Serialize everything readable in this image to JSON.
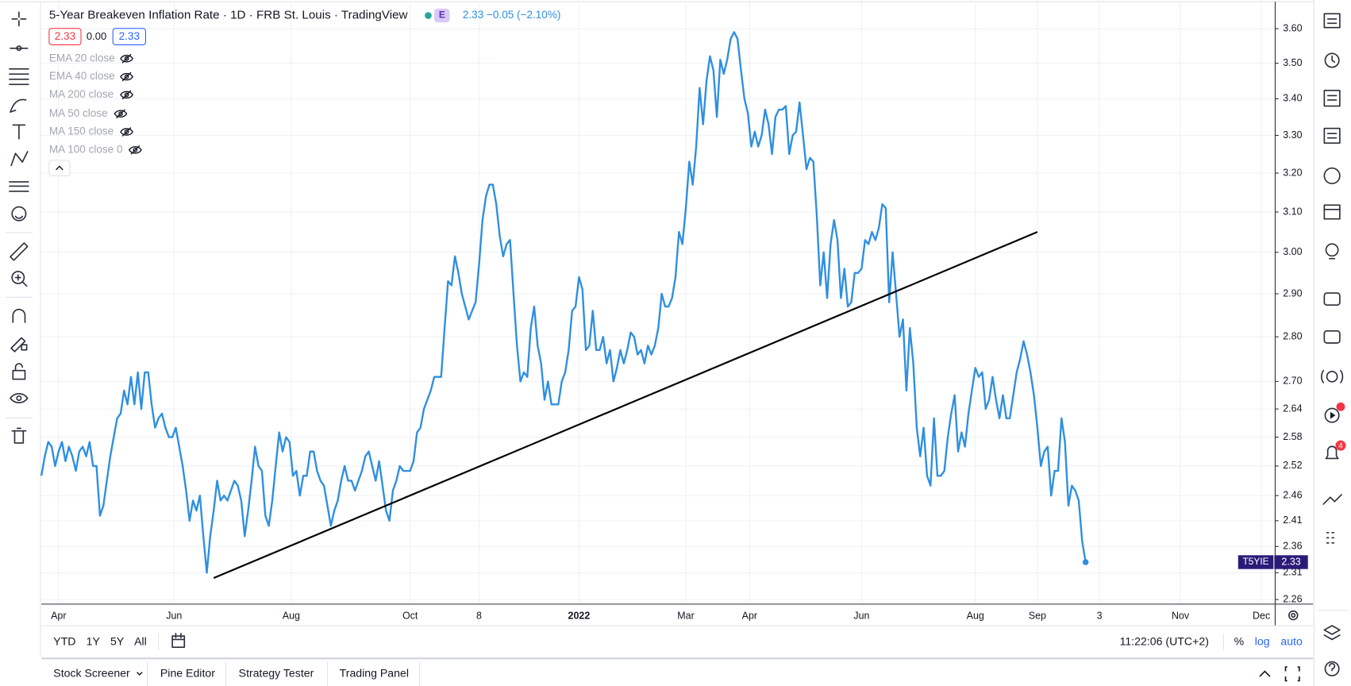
{
  "header": {
    "title": "5-Year Breakeven Inflation Rate · 1D · FRB St. Louis · TradingView",
    "badge": "E",
    "change": "2.33 −0.05 (−2.10%)",
    "ohlc": [
      "2.33",
      "0.00",
      "2.33"
    ]
  },
  "indicators": [
    "EMA 20 close",
    "EMA 40 close",
    "MA 200 close",
    "MA 50 close",
    "MA 150 close",
    "MA 100 close 0"
  ],
  "ranges": [
    "YTD",
    "1Y",
    "5Y",
    "All"
  ],
  "clock": "11:22:06 (UTC+2)",
  "scale_buttons": [
    "%",
    "log",
    "auto"
  ],
  "tabs": [
    "Stock Screener",
    "Pine Editor",
    "Strategy Tester",
    "Trading Panel"
  ],
  "notifications": "4",
  "chart_data": {
    "type": "line",
    "log_scale": true,
    "grid": true,
    "categories": [
      null,
      null,
      null,
      null,
      null,
      null,
      null,
      null,
      null,
      null,
      null,
      null,
      null,
      null,
      null,
      null,
      null,
      null,
      null,
      null,
      null,
      null,
      null,
      null,
      null,
      null,
      null,
      null,
      null,
      null,
      null,
      null,
      null,
      null,
      null,
      null,
      null,
      null,
      null,
      null,
      null,
      null,
      null,
      null,
      null,
      null,
      null,
      null,
      null,
      null,
      null,
      null,
      null,
      null,
      null,
      null,
      null,
      null,
      null,
      null,
      null,
      null,
      null,
      null,
      null,
      null,
      null,
      null,
      null,
      null,
      null,
      null,
      null,
      null,
      null,
      null,
      null,
      null,
      null,
      null,
      null,
      null,
      null,
      null,
      null,
      null,
      null,
      null,
      null,
      null,
      null,
      null,
      null,
      null,
      null,
      null,
      null,
      null,
      null,
      null,
      null,
      null,
      null,
      null,
      null,
      null,
      null,
      null,
      null,
      null,
      null,
      null,
      null,
      null,
      null,
      null,
      null,
      null,
      null,
      null,
      null,
      null,
      null,
      null,
      null,
      null,
      null,
      null,
      null,
      null,
      null,
      null,
      null,
      null,
      null,
      null,
      null,
      null,
      null,
      null,
      null,
      null,
      null,
      null,
      null,
      null,
      null,
      null,
      null,
      null,
      null,
      null,
      null,
      null,
      null,
      null,
      null,
      null,
      null,
      null,
      null,
      null,
      null,
      null,
      null,
      null,
      null,
      null,
      null,
      null,
      null,
      null,
      null,
      null,
      null,
      null,
      null,
      null,
      null,
      null,
      null,
      null,
      null,
      null,
      null,
      null,
      null,
      null,
      null,
      null,
      null,
      null,
      null,
      null,
      null,
      null,
      null,
      null,
      null,
      null,
      null,
      null,
      null,
      null,
      null,
      null,
      null,
      null,
      null,
      null,
      null,
      null,
      null,
      null,
      null,
      null,
      null,
      null,
      null,
      null,
      null,
      null,
      null,
      null,
      null,
      null,
      null,
      null,
      null,
      null,
      null,
      null,
      null,
      null,
      null,
      null,
      null,
      null,
      null,
      null,
      null,
      null,
      null,
      null,
      null,
      null,
      null,
      null,
      null,
      null,
      null,
      null,
      null,
      null,
      null,
      null,
      null,
      null,
      null,
      null,
      null,
      null,
      null,
      null,
      null,
      null,
      null,
      null,
      null,
      null,
      null,
      null,
      null,
      null,
      null,
      null,
      null,
      null,
      null,
      null,
      null,
      null,
      null,
      null,
      null,
      null,
      null,
      null,
      null,
      null,
      null,
      null,
      null,
      null,
      null,
      null,
      null,
      null,
      null,
      null,
      null,
      null,
      null,
      null
    ],
    "series": [
      {
        "name": "T5YIE",
        "color": "#2f8fe0",
        "values": [
          2.5,
          2.54,
          2.57,
          2.56,
          2.52,
          2.55,
          2.57,
          2.53,
          2.56,
          2.54,
          2.51,
          2.55,
          2.56,
          2.54,
          2.57,
          2.52,
          2.52,
          2.42,
          2.44,
          2.49,
          2.54,
          2.58,
          2.62,
          2.63,
          2.68,
          2.65,
          2.71,
          2.65,
          2.72,
          2.64,
          2.72,
          2.72,
          2.65,
          2.6,
          2.62,
          2.63,
          2.6,
          2.58,
          2.58,
          2.6,
          2.56,
          2.52,
          2.47,
          2.41,
          2.45,
          2.43,
          2.46,
          2.38,
          2.31,
          2.38,
          2.43,
          2.49,
          2.45,
          2.46,
          2.45,
          2.47,
          2.49,
          2.48,
          2.45,
          2.38,
          2.43,
          2.49,
          2.56,
          2.52,
          2.51,
          2.42,
          2.4,
          2.45,
          2.52,
          2.59,
          2.55,
          2.58,
          2.57,
          2.5,
          2.51,
          2.46,
          2.5,
          2.5,
          2.55,
          2.55,
          2.51,
          2.49,
          2.48,
          2.44,
          2.4,
          2.43,
          2.45,
          2.49,
          2.52,
          2.49,
          2.49,
          2.47,
          2.49,
          2.51,
          2.54,
          2.55,
          2.52,
          2.49,
          2.53,
          2.48,
          2.43,
          2.41,
          2.47,
          2.49,
          2.52,
          2.51,
          2.51,
          2.51,
          2.53,
          2.59,
          2.6,
          2.64,
          2.66,
          2.68,
          2.71,
          2.71,
          2.71,
          2.82,
          2.93,
          2.92,
          2.99,
          2.95,
          2.9,
          2.87,
          2.84,
          2.86,
          2.88,
          2.97,
          3.08,
          3.14,
          3.17,
          3.17,
          3.12,
          3.04,
          2.99,
          3.02,
          3.03,
          2.9,
          2.78,
          2.7,
          2.72,
          2.71,
          2.82,
          2.87,
          2.78,
          2.74,
          2.66,
          2.7,
          2.65,
          2.65,
          2.65,
          2.7,
          2.72,
          2.77,
          2.86,
          2.87,
          2.94,
          2.91,
          2.77,
          2.78,
          2.86,
          2.77,
          2.77,
          2.8,
          2.74,
          2.77,
          2.7,
          2.73,
          2.77,
          2.74,
          2.77,
          2.81,
          2.8,
          2.76,
          2.77,
          2.74,
          2.78,
          2.76,
          2.78,
          2.82,
          2.9,
          2.87,
          2.87,
          2.89,
          2.94,
          3.05,
          3.02,
          3.11,
          3.23,
          3.17,
          3.27,
          3.43,
          3.33,
          3.45,
          3.52,
          3.48,
          3.35,
          3.51,
          3.47,
          3.51,
          3.57,
          3.59,
          3.57,
          3.48,
          3.4,
          3.36,
          3.27,
          3.31,
          3.27,
          3.3,
          3.37,
          3.33,
          3.25,
          3.35,
          3.37,
          3.37,
          3.38,
          3.25,
          3.3,
          3.31,
          3.39,
          3.3,
          3.21,
          3.24,
          3.23,
          3.09,
          2.92,
          3.0,
          2.89,
          3.02,
          3.08,
          3.03,
          2.89,
          2.96,
          2.87,
          2.88,
          2.95,
          2.95,
          2.96,
          3.03,
          3.02,
          3.05,
          3.03,
          3.06,
          3.12,
          3.11,
          2.88,
          3.0,
          2.9,
          2.8,
          2.84,
          2.68,
          2.82,
          2.74,
          2.6,
          2.54,
          2.6,
          2.5,
          2.48,
          2.62,
          2.5,
          2.5,
          2.51,
          2.58,
          2.63,
          2.67,
          2.55,
          2.59,
          2.56,
          2.63,
          2.68,
          2.73,
          2.71,
          2.72,
          2.64,
          2.66,
          2.71,
          2.66,
          2.62,
          2.67,
          2.62,
          2.62,
          2.67,
          2.72,
          2.75,
          2.79,
          2.76,
          2.72,
          2.67,
          2.6,
          2.52,
          2.55,
          2.56,
          2.46,
          2.51,
          2.51,
          2.62,
          2.57,
          2.44,
          2.48,
          2.47,
          2.45,
          2.37,
          2.33
        ]
      }
    ],
    "trendline": {
      "x": [
        50,
        289
      ],
      "values": [
        2.3,
        3.05
      ],
      "color": "#000000"
    },
    "xlim": [
      0,
      358
    ],
    "xticks": [
      {
        "value": 5,
        "label": "Apr"
      },
      {
        "value": 38.5,
        "label": "Jun"
      },
      {
        "value": 72.5,
        "label": "Aug"
      },
      {
        "value": 107,
        "label": "Oct"
      },
      {
        "value": 127,
        "label": "8"
      },
      {
        "value": 156,
        "label": "2022"
      },
      {
        "value": 187,
        "label": "Mar"
      },
      {
        "value": 205.5,
        "label": "Apr"
      },
      {
        "value": 238,
        "label": "Jun"
      },
      {
        "value": 271,
        "label": "Aug"
      },
      {
        "value": 289,
        "label": "Sep"
      },
      {
        "value": 307,
        "label": "3"
      },
      {
        "value": 330.5,
        "label": "Nov"
      },
      {
        "value": 354,
        "label": "Dec"
      }
    ],
    "ylim": [
      2.25,
      3.68
    ],
    "yticks": [
      2.26,
      2.31,
      2.36,
      2.41,
      2.46,
      2.52,
      2.58,
      2.64,
      {
        "value": 2.7,
        "label": "2.70"
      },
      {
        "value": 2.8,
        "label": "2.80"
      },
      {
        "value": 2.9,
        "label": "2.90"
      },
      {
        "value": 3.0,
        "label": "3.00"
      },
      {
        "value": 3.1,
        "label": "3.10"
      },
      {
        "value": 3.2,
        "label": "3.20"
      },
      {
        "value": 3.3,
        "label": "3.30"
      },
      {
        "value": 3.4,
        "label": "3.40"
      },
      {
        "value": 3.5,
        "label": "3.50"
      },
      {
        "value": 3.6,
        "label": "3.60"
      }
    ]
  }
}
